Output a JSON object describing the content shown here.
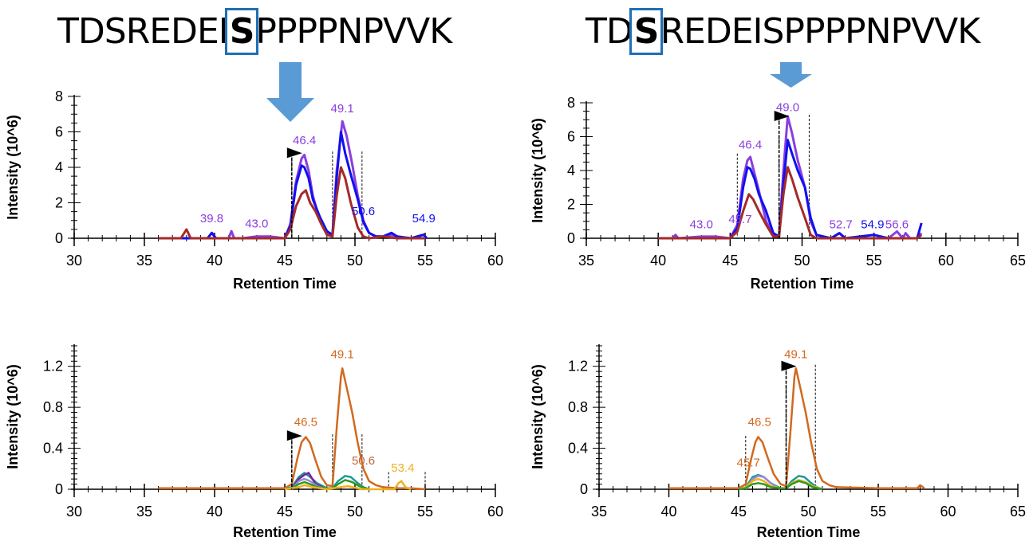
{
  "sequences": [
    {
      "prefix": "TDSREDEI",
      "highlight": "S",
      "suffix": "PPPPNPVVK"
    },
    {
      "prefix": "TD",
      "highlight": "S",
      "suffix": "REDEISPPPPNPVVK"
    }
  ],
  "colors": {
    "arrow": "#5b9bd5",
    "highlight_box": "#1f6fb5",
    "purple": "#8a3ee0",
    "blue": "#1010f0",
    "darkred": "#a52a2a",
    "orange": "#d2691e",
    "teal": "#1a9a9a",
    "green": "#2e9a1e",
    "gold": "#f0b020",
    "violet": "#7a1fa2",
    "lavender": "#9a8ad0"
  },
  "chart_data": [
    {
      "id": "top-left",
      "type": "line",
      "xlabel": "Retention Time",
      "ylabel": "Intensity (10^6)",
      "xlim": [
        30,
        60
      ],
      "ylim": [
        0,
        8
      ],
      "xticks": [
        30,
        35,
        40,
        45,
        50,
        55,
        60
      ],
      "yticks": [
        0,
        2,
        4,
        6,
        8
      ],
      "yticklabels": [
        "0",
        "2",
        "4",
        "6",
        "8"
      ],
      "boundaries": [
        45.5,
        48.4,
        50.5
      ],
      "marker_x": 45.5,
      "marker_y": 4.8,
      "series": [
        {
          "name": "purple",
          "color": "#8a3ee0",
          "x": [
            36,
            38,
            39.5,
            39.8,
            40.1,
            41,
            41.2,
            41.4,
            42,
            43,
            43.9,
            45,
            45.4,
            45.8,
            46.2,
            46.4,
            46.7,
            47,
            47.5,
            48,
            48.4,
            48.7,
            49.1,
            49.4,
            49.8,
            50.2,
            50.6,
            51,
            51.5,
            52,
            52.6,
            53,
            54,
            54.9,
            55.1
          ],
          "y": [
            0,
            0,
            0,
            0.3,
            0,
            0,
            0.4,
            0,
            0,
            0.1,
            0.1,
            0,
            0.8,
            3.2,
            4.5,
            4.7,
            3.8,
            2.4,
            1.0,
            0.3,
            0.2,
            3.8,
            6.6,
            5.8,
            4.2,
            2.4,
            1.0,
            0.3,
            0.1,
            0.1,
            0.2,
            0.1,
            0,
            0.2,
            0
          ]
        },
        {
          "name": "blue",
          "color": "#1010f0",
          "x": [
            36,
            38,
            39.5,
            39.8,
            40.1,
            41,
            43,
            45,
            45.4,
            45.8,
            46.2,
            46.4,
            46.7,
            47,
            47.5,
            48,
            48.4,
            48.7,
            49.0,
            49.3,
            49.7,
            50.2,
            50.6,
            51,
            51.5,
            52,
            52.6,
            53,
            54,
            54.9,
            55.1
          ],
          "y": [
            0,
            0,
            0,
            0.3,
            0,
            0,
            0,
            0,
            0.7,
            3.0,
            4.1,
            4.0,
            3.4,
            2.2,
            1.2,
            0.4,
            0.2,
            3.4,
            6.0,
            4.8,
            3.6,
            2.2,
            0.9,
            0.3,
            0.1,
            0.1,
            0.3,
            0.1,
            0,
            0.2,
            0
          ]
        },
        {
          "name": "darkred",
          "color": "#a52a2a",
          "x": [
            36,
            37.6,
            38,
            38.3,
            39,
            45,
            45.4,
            45.8,
            46.2,
            46.5,
            46.8,
            47.2,
            47.6,
            48,
            48.4,
            48.7,
            49.0,
            49.3,
            49.7,
            50.2,
            50.6,
            51,
            52,
            53,
            55
          ],
          "y": [
            0,
            0,
            0.5,
            0,
            0,
            0,
            0.5,
            1.8,
            2.5,
            2.7,
            2.0,
            1.5,
            0.8,
            0.2,
            0.1,
            2.4,
            4.0,
            3.4,
            2.0,
            0.6,
            0.1,
            0,
            0.1,
            0,
            0
          ]
        }
      ],
      "annotations": [
        {
          "x": 39.8,
          "y": 0.9,
          "text": "39.8",
          "color": "#8a3ee0"
        },
        {
          "x": 43.0,
          "y": 0.6,
          "text": "43.0",
          "color": "#8a3ee0"
        },
        {
          "x": 46.4,
          "y": 5.3,
          "text": "46.4",
          "color": "#8a3ee0"
        },
        {
          "x": 49.1,
          "y": 7.1,
          "text": "49.1",
          "color": "#8a3ee0"
        },
        {
          "x": 50.6,
          "y": 1.3,
          "text": "50.6",
          "color": "#1010f0"
        },
        {
          "x": 54.9,
          "y": 0.9,
          "text": "54.9",
          "color": "#1010f0"
        }
      ]
    },
    {
      "id": "top-right",
      "type": "line",
      "xlabel": "Retention Time",
      "ylabel": "Intensity (10^6)",
      "xlim": [
        35,
        65
      ],
      "ylim": [
        0,
        8
      ],
      "xticks": [
        35,
        40,
        45,
        50,
        55,
        60,
        65
      ],
      "yticks": [
        0,
        2,
        4,
        6,
        8
      ],
      "yticklabels": [
        "0",
        "2",
        "4",
        "6",
        "8"
      ],
      "boundaries": [
        45.5,
        48.4,
        50.5
      ],
      "marker_x": 48.4,
      "marker_y": 7.2,
      "series": [
        {
          "name": "purple",
          "color": "#8a3ee0",
          "x": [
            40,
            41,
            41.2,
            41.4,
            43,
            44,
            45,
            45.5,
            45.9,
            46.2,
            46.4,
            46.7,
            47,
            47.5,
            48,
            48.4,
            48.7,
            49.0,
            49.3,
            49.7,
            50.2,
            50.6,
            51,
            52,
            52.6,
            53,
            55,
            56,
            56.6,
            57,
            57.2,
            57.5,
            58,
            58.3
          ],
          "y": [
            0,
            0,
            0.2,
            0,
            0.1,
            0.1,
            0,
            0.8,
            3.5,
            4.6,
            4.8,
            3.8,
            2.8,
            1.0,
            0.2,
            0.1,
            4.0,
            7.2,
            6.2,
            4.6,
            3.0,
            1.0,
            0.2,
            0,
            0.3,
            0,
            0,
            0,
            0.4,
            0,
            0.3,
            0,
            0,
            0.3
          ]
        },
        {
          "name": "blue",
          "color": "#1010f0",
          "x": [
            40,
            43,
            45,
            45.5,
            45.9,
            46.2,
            46.4,
            46.7,
            47,
            47.5,
            48,
            48.4,
            48.7,
            49.0,
            49.3,
            49.7,
            50.2,
            50.6,
            51,
            52,
            52.6,
            53,
            55,
            56,
            58,
            58.3
          ],
          "y": [
            0,
            0,
            0,
            0.6,
            3.0,
            4.2,
            4.1,
            3.5,
            2.6,
            1.6,
            0.3,
            0.1,
            3.2,
            5.8,
            5.0,
            4.0,
            3.0,
            1.2,
            0.2,
            0,
            0.3,
            0,
            0.2,
            0,
            0,
            0.9
          ]
        },
        {
          "name": "darkred",
          "color": "#a52a2a",
          "x": [
            40,
            45,
            45.5,
            45.9,
            46.3,
            46.6,
            47,
            47.5,
            48,
            48.4,
            48.7,
            49.0,
            49.3,
            49.7,
            50.2,
            50.6,
            51,
            55,
            58,
            58.3
          ],
          "y": [
            0,
            0,
            0.4,
            1.6,
            2.6,
            2.3,
            1.6,
            0.8,
            0.1,
            0.1,
            2.6,
            4.2,
            3.5,
            2.4,
            1.2,
            0.2,
            0,
            0,
            0,
            0.2
          ]
        }
      ],
      "annotations": [
        {
          "x": 43.0,
          "y": 0.6,
          "text": "43.0",
          "color": "#8a3ee0"
        },
        {
          "x": 45.7,
          "y": 0.9,
          "text": "45.7",
          "color": "#8a3ee0"
        },
        {
          "x": 46.4,
          "y": 5.3,
          "text": "46.4",
          "color": "#8a3ee0"
        },
        {
          "x": 49.0,
          "y": 7.5,
          "text": "49.0",
          "color": "#8a3ee0"
        },
        {
          "x": 52.7,
          "y": 0.6,
          "text": "52.7",
          "color": "#8a3ee0"
        },
        {
          "x": 54.9,
          "y": 0.6,
          "text": "54.9",
          "color": "#1010f0"
        },
        {
          "x": 56.6,
          "y": 0.6,
          "text": "56.6",
          "color": "#8a3ee0"
        }
      ]
    },
    {
      "id": "bottom-left",
      "type": "line",
      "xlabel": "Retention Time",
      "ylabel": "Intensity (10^6)",
      "xlim": [
        30,
        60
      ],
      "ylim": [
        0,
        1.4
      ],
      "xticks": [
        30,
        35,
        40,
        45,
        50,
        55,
        60
      ],
      "yticks": [
        0,
        0.4,
        0.8,
        1.2
      ],
      "yticklabels": [
        "0",
        "0.4",
        "0.8",
        "1.2"
      ],
      "boundaries": [
        45.5,
        48.4,
        50.5,
        52.4,
        55.0
      ],
      "marker_x": 45.5,
      "marker_y": 0.52,
      "series": [
        {
          "name": "orange",
          "color": "#d2691e",
          "x": [
            36,
            40,
            45,
            45.5,
            45.9,
            46.2,
            46.5,
            46.8,
            47.2,
            47.6,
            48,
            48.4,
            48.7,
            49.0,
            49.1,
            49.4,
            49.8,
            50.2,
            50.6,
            51,
            51.5,
            52,
            53,
            54,
            55
          ],
          "y": [
            0.01,
            0.01,
            0.01,
            0.05,
            0.3,
            0.46,
            0.51,
            0.45,
            0.28,
            0.12,
            0.04,
            0.03,
            0.6,
            1.1,
            1.18,
            1.0,
            0.75,
            0.45,
            0.2,
            0.08,
            0.04,
            0.02,
            0.01,
            0.01,
            0
          ]
        },
        {
          "name": "teal",
          "color": "#1a9a9a",
          "x": [
            45,
            45.5,
            46,
            46.4,
            46.8,
            47.3,
            48,
            48.4,
            48.8,
            49.3,
            49.7,
            50.2,
            50.6,
            51
          ],
          "y": [
            0,
            0.02,
            0.12,
            0.16,
            0.12,
            0.06,
            0.01,
            0.01,
            0.08,
            0.13,
            0.12,
            0.06,
            0.02,
            0
          ]
        },
        {
          "name": "violet",
          "color": "#7a1fa2",
          "x": [
            45.5,
            46,
            46.4,
            46.7,
            47.2,
            48
          ],
          "y": [
            0,
            0.1,
            0.14,
            0.16,
            0.05,
            0
          ]
        },
        {
          "name": "lavender",
          "color": "#9a8ad0",
          "x": [
            45.5,
            46,
            46.4,
            46.8,
            47.3,
            48
          ],
          "y": [
            0,
            0.08,
            0.1,
            0.08,
            0.03,
            0
          ]
        },
        {
          "name": "green",
          "color": "#2e9a1e",
          "x": [
            45,
            45.5,
            46,
            46.4,
            46.8,
            47.3,
            48,
            48.4,
            48.8,
            49.3,
            49.8,
            50.3,
            51
          ],
          "y": [
            0,
            0.01,
            0.05,
            0.07,
            0.05,
            0.02,
            0.01,
            0.01,
            0.05,
            0.09,
            0.07,
            0.03,
            0
          ]
        },
        {
          "name": "gold",
          "color": "#f0b020",
          "x": [
            45,
            46,
            46.4,
            47,
            48,
            49,
            49.5,
            50.5,
            52.8,
            53.1,
            53.3,
            53.6,
            54
          ],
          "y": [
            0,
            0.02,
            0.04,
            0.02,
            0,
            0.02,
            0.03,
            0,
            0,
            0.06,
            0.08,
            0.02,
            0
          ]
        }
      ],
      "annotations": [
        {
          "x": 46.5,
          "y": 0.62,
          "text": "46.5",
          "color": "#d2691e"
        },
        {
          "x": 49.1,
          "y": 1.28,
          "text": "49.1",
          "color": "#d2691e"
        },
        {
          "x": 50.6,
          "y": 0.24,
          "text": "50.6",
          "color": "#c0683a"
        },
        {
          "x": 53.4,
          "y": 0.17,
          "text": "53.4",
          "color": "#f0b020"
        }
      ]
    },
    {
      "id": "bottom-right",
      "type": "line",
      "xlabel": "Retention Time",
      "ylabel": "Intensity (10^6)",
      "xlim": [
        35,
        65
      ],
      "ylim": [
        0,
        1.4
      ],
      "xticks": [
        35,
        40,
        45,
        50,
        55,
        60,
        65
      ],
      "yticks": [
        0,
        0.4,
        0.8,
        1.2
      ],
      "yticklabels": [
        "0",
        "0.4",
        "0.8",
        "1.2"
      ],
      "boundaries": [
        45.5,
        48.4,
        50.5
      ],
      "marker_x": 48.4,
      "marker_y": 1.2,
      "series": [
        {
          "name": "orange",
          "color": "#d2691e",
          "x": [
            40,
            45,
            45.5,
            45.9,
            46.2,
            46.4,
            46.7,
            47.1,
            47.5,
            48,
            48.4,
            48.7,
            49.0,
            49.1,
            49.4,
            49.8,
            50.2,
            50.6,
            51,
            51.5,
            52,
            55,
            57.8,
            58.0,
            58.3
          ],
          "y": [
            0.01,
            0.01,
            0.05,
            0.3,
            0.46,
            0.51,
            0.46,
            0.3,
            0.15,
            0.05,
            0.03,
            0.55,
            1.1,
            1.18,
            1.0,
            0.75,
            0.45,
            0.2,
            0.08,
            0.04,
            0.02,
            0.01,
            0.01,
            0.04,
            0.01
          ]
        },
        {
          "name": "teal",
          "color": "#1a9a9a",
          "x": [
            45,
            45.5,
            46,
            46.4,
            46.8,
            47.3,
            48,
            48.4,
            48.8,
            49.3,
            49.7,
            50.2,
            50.6,
            51
          ],
          "y": [
            0,
            0.02,
            0.12,
            0.14,
            0.12,
            0.06,
            0.01,
            0.01,
            0.08,
            0.13,
            0.12,
            0.06,
            0.02,
            0
          ]
        },
        {
          "name": "lavender",
          "color": "#9a8ad0",
          "x": [
            45.5,
            46,
            46.4,
            46.8,
            47.3,
            48
          ],
          "y": [
            0,
            0.1,
            0.13,
            0.12,
            0.06,
            0
          ]
        },
        {
          "name": "gold",
          "color": "#f0b020",
          "x": [
            45,
            45.5,
            46,
            46.4,
            46.8,
            47.3,
            48,
            48.4,
            48.8,
            49.3,
            49.8,
            50.3,
            51
          ],
          "y": [
            0,
            0.02,
            0.08,
            0.1,
            0.08,
            0.03,
            0.01,
            0.01,
            0.06,
            0.09,
            0.07,
            0.03,
            0
          ]
        },
        {
          "name": "green",
          "color": "#2e9a1e",
          "x": [
            45,
            45.5,
            46,
            46.4,
            46.8,
            47.3,
            48,
            48.4,
            48.8,
            49.3,
            49.8,
            50.3,
            51
          ],
          "y": [
            0,
            0.01,
            0.05,
            0.06,
            0.05,
            0.02,
            0.01,
            0.01,
            0.05,
            0.08,
            0.06,
            0.02,
            0
          ]
        }
      ],
      "annotations": [
        {
          "x": 46.5,
          "y": 0.62,
          "text": "46.5",
          "color": "#d2691e"
        },
        {
          "x": 49.1,
          "y": 1.28,
          "text": "49.1",
          "color": "#d2691e"
        },
        {
          "x": 45.7,
          "y": 0.22,
          "text": "45.7",
          "color": "#d2691e"
        }
      ]
    }
  ]
}
